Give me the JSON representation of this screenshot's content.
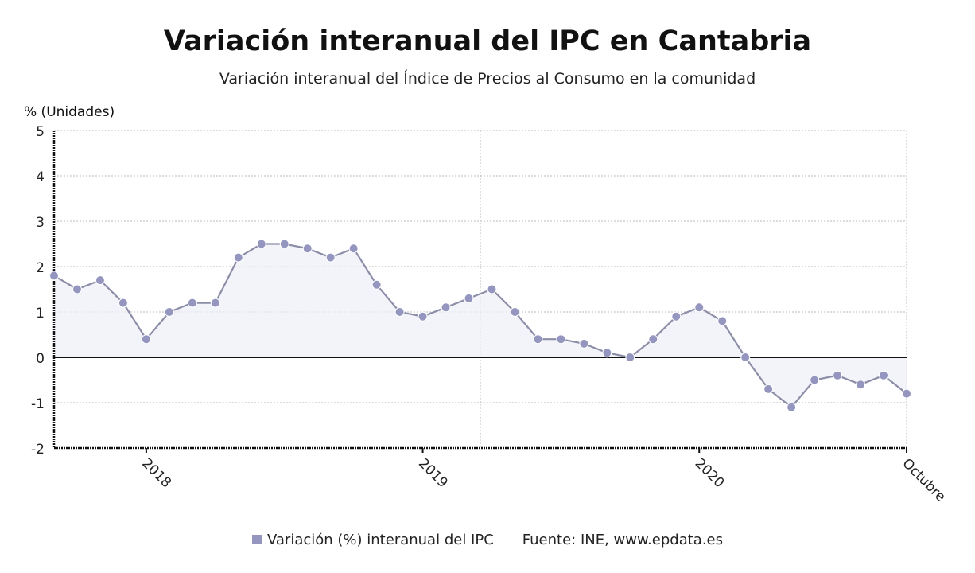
{
  "chart_data": {
    "type": "line",
    "title": "Variación interanual del IPC en Cantabria",
    "subtitle": "Variación interanual del Índice de Precios al Consumo en la comunidad",
    "ylabel": "% (Unidades)",
    "xlabel": "",
    "ylim": [
      -2,
      5
    ],
    "yticks": [
      5,
      4,
      3,
      2,
      1,
      0,
      -1,
      -2
    ],
    "grid": true,
    "legend_position": "bottom",
    "x_start": "2017-09",
    "x_end": "2020-10",
    "xtick_labels": [
      {
        "month": "2018-01",
        "label": "2018"
      },
      {
        "month": "2019-01",
        "label": "2019"
      },
      {
        "month": "2020-01",
        "label": "2020"
      },
      {
        "month": "2020-10",
        "label": "Octubre"
      }
    ],
    "x": [
      "2017-09",
      "2017-10",
      "2017-11",
      "2017-12",
      "2018-01",
      "2018-02",
      "2018-03",
      "2018-04",
      "2018-05",
      "2018-06",
      "2018-07",
      "2018-08",
      "2018-09",
      "2018-10",
      "2018-11",
      "2018-12",
      "2019-01",
      "2019-02",
      "2019-03",
      "2019-04",
      "2019-05",
      "2019-06",
      "2019-07",
      "2019-08",
      "2019-09",
      "2019-10",
      "2019-11",
      "2019-12",
      "2020-01",
      "2020-02",
      "2020-03",
      "2020-04",
      "2020-05",
      "2020-06",
      "2020-07",
      "2020-08",
      "2020-09",
      "2020-10"
    ],
    "series": [
      {
        "name": "Variación (%) interanual del IPC",
        "color": "#9496bf",
        "values": [
          1.8,
          1.5,
          1.7,
          1.2,
          0.4,
          1.0,
          1.2,
          1.2,
          2.2,
          2.5,
          2.5,
          2.4,
          2.2,
          2.4,
          1.6,
          1.0,
          0.9,
          1.1,
          1.3,
          1.5,
          1.0,
          0.4,
          0.4,
          0.3,
          0.1,
          0.0,
          0.4,
          0.9,
          1.1,
          0.8,
          0.0,
          -0.7,
          -1.1,
          -0.5,
          -0.4,
          -0.6,
          -0.4,
          -0.8
        ]
      }
    ],
    "source": "Fuente: INE, www.epdata.es"
  }
}
